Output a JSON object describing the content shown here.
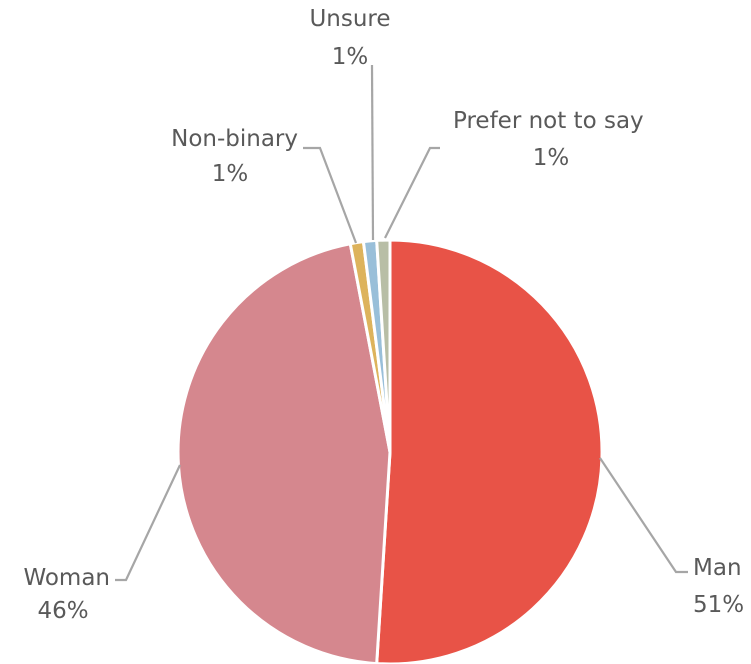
{
  "chart_data": {
    "type": "pie",
    "categories": [
      "Man",
      "Woman",
      "Non-binary",
      "Unsure",
      "Prefer not to say"
    ],
    "values": [
      51,
      46,
      1,
      1,
      1
    ],
    "value_labels": [
      "51%",
      "46%",
      "1%",
      "1%",
      "1%"
    ],
    "colors": [
      "#E85347",
      "#D5878E",
      "#DDB35C",
      "#99BFD9",
      "#B8BEA6"
    ],
    "leader_line_color": "#A6A6A6",
    "label_color": "#595959",
    "legend": "none",
    "start_angle_deg": 0,
    "direction": "clockwise"
  }
}
